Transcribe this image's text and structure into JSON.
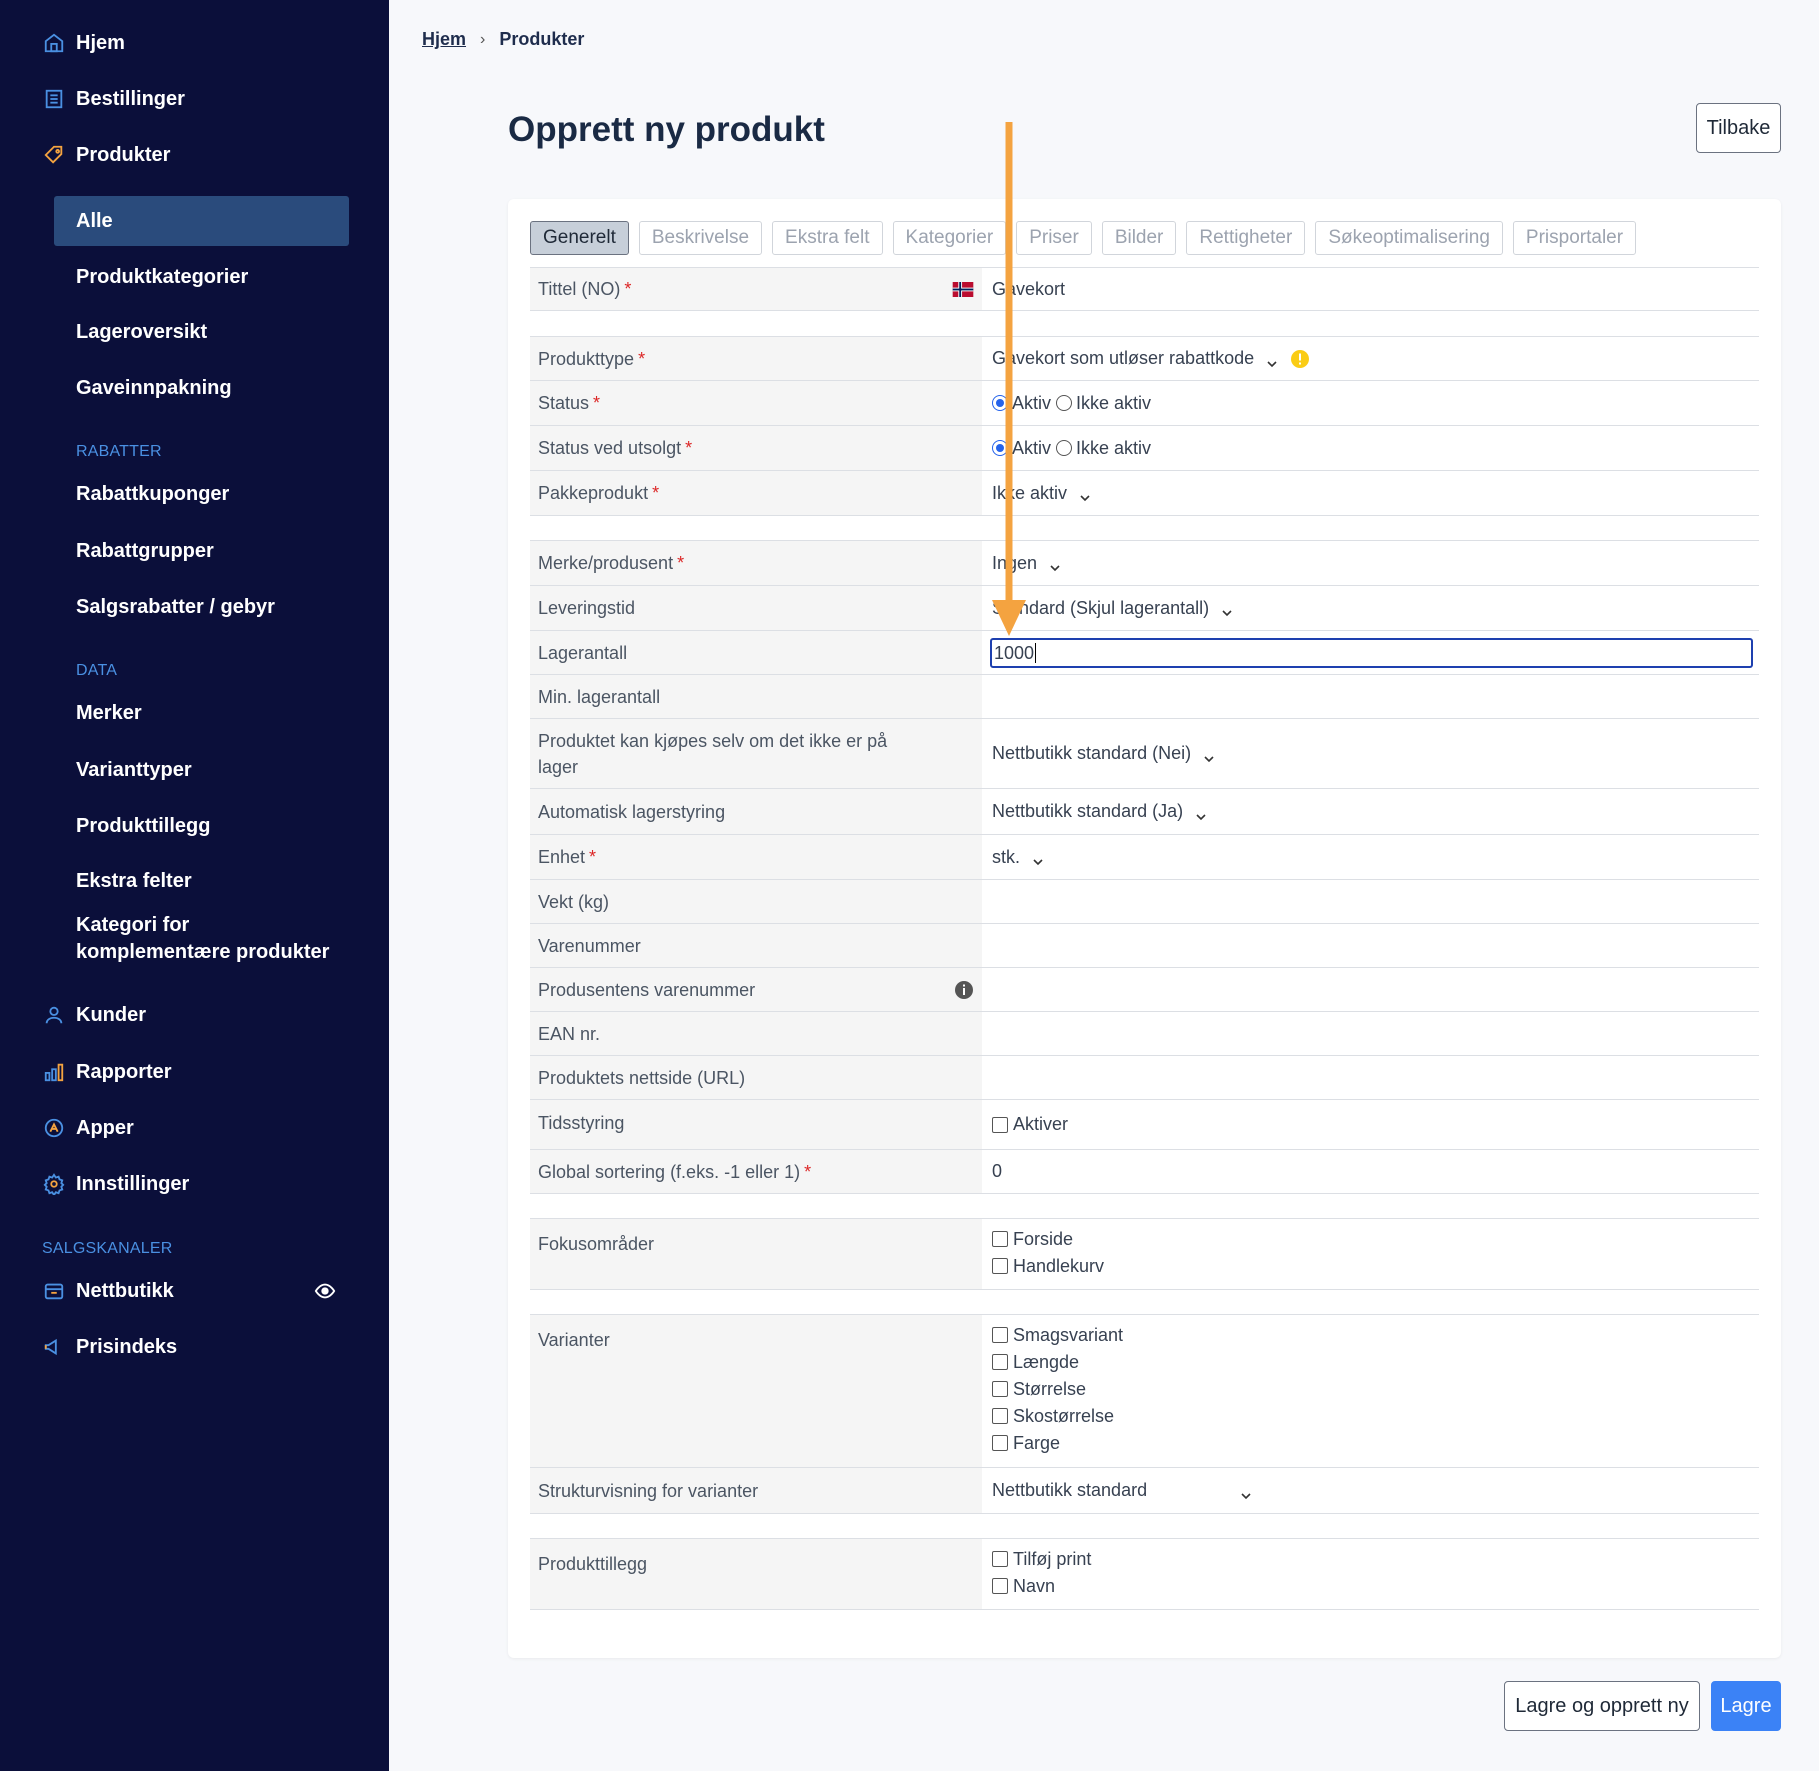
{
  "sidebar": {
    "main_items": [
      {
        "label": "Hjem",
        "icon": "home-icon"
      },
      {
        "label": "Bestillinger",
        "icon": "orders-icon"
      },
      {
        "label": "Produkter",
        "icon": "tag-icon"
      }
    ],
    "product_sub": [
      "Alle",
      "Produktkategorier",
      "Lageroversikt",
      "Gaveinnpakning"
    ],
    "section_rabatter": "RABATTER",
    "rabatter_items": [
      "Rabattkuponger",
      "Rabattgrupper",
      "Salgsrabatter / gebyr"
    ],
    "section_data": "DATA",
    "data_items": [
      "Merker",
      "Varianttyper",
      "Produkttillegg",
      "Ekstra felter",
      "Kategori for",
      "komplementære produkter"
    ],
    "lower_items": [
      {
        "label": "Kunder",
        "icon": "user-icon"
      },
      {
        "label": "Rapporter",
        "icon": "bar-chart-icon"
      },
      {
        "label": "Apper",
        "icon": "apps-icon"
      },
      {
        "label": "Innstillinger",
        "icon": "gear-icon"
      }
    ],
    "section_salgskanaler": "SALGSKANALER",
    "channel_items": [
      {
        "label": "Nettbutikk",
        "icon": "store-icon"
      },
      {
        "label": "Prisindeks",
        "icon": "megaphone-icon"
      }
    ]
  },
  "breadcrumb": {
    "home": "Hjem",
    "current": "Produkter"
  },
  "page_title": "Opprett ny produkt",
  "back_button": "Tilbake",
  "tabs": [
    "Generelt",
    "Beskrivelse",
    "Ekstra felt",
    "Kategorier",
    "Priser",
    "Bilder",
    "Rettigheter",
    "Søkeoptimalisering",
    "Prisportaler"
  ],
  "form": {
    "title_label": "Tittel (NO)",
    "title_value": "Gavekort",
    "product_type_label": "Produkttype",
    "product_type_value": "Gavekort som utløser rabattkode",
    "status_label": "Status",
    "status_soldout_label": "Status ved utsolgt",
    "radio_active": "Aktiv",
    "radio_inactive": "Ikke aktiv",
    "package_label": "Pakkeprodukt",
    "package_value": "Ikke aktiv",
    "brand_label": "Merke/produsent",
    "brand_value": "Ingen",
    "delivery_label": "Leveringstid",
    "delivery_value": "Standard (Skjul lagerantall)",
    "stock_label": "Lagerantall",
    "stock_value": "1000",
    "min_stock_label": "Min. lagerantall",
    "backorder_label_1": "Produktet kan kjøpes selv om det ikke er på",
    "backorder_label_2": "lager",
    "backorder_value": "Nettbutikk standard (Nei)",
    "auto_stock_label": "Automatisk lagerstyring",
    "auto_stock_value": "Nettbutikk standard (Ja)",
    "unit_label": "Enhet",
    "unit_value": "stk.",
    "weight_label": "Vekt (kg)",
    "sku_label": "Varenummer",
    "mfr_sku_label": "Produsentens varenummer",
    "ean_label": "EAN nr.",
    "url_label": "Produktets nettside (URL)",
    "timing_label": "Tidsstyring",
    "timing_option": "Aktiver",
    "sort_label": "Global sortering (f.eks. -1 eller 1)",
    "sort_value": "0",
    "focus_label": "Fokusområder",
    "focus_options": [
      "Forside",
      "Handlekurv"
    ],
    "variants_label": "Varianter",
    "variant_options": [
      "Smagsvariant",
      "Længde",
      "Størrelse",
      "Skostørrelse",
      "Farge"
    ],
    "structure_label": "Strukturvisning for varianter",
    "structure_value": "Nettbutikk standard",
    "addons_label": "Produkttillegg",
    "addon_options": [
      "Tilføj print",
      "Navn"
    ],
    "required_mark": "*"
  },
  "footer": {
    "save_new": "Lagre og opprett ny",
    "save": "Lagre"
  },
  "colors": {
    "sidebar_bg": "#0b0f3a",
    "active_item": "#2a4b7c",
    "accent": "#3b82f6",
    "arrow": "#f4a340",
    "section": "#4a90e2"
  }
}
